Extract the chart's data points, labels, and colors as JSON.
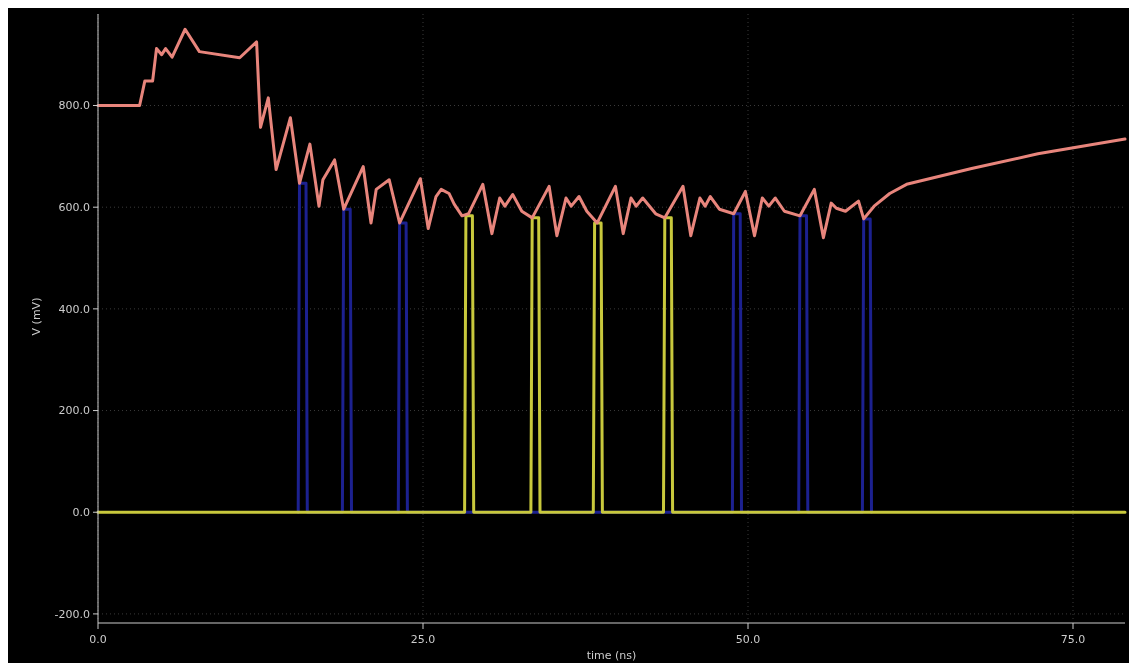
{
  "chart_data": {
    "type": "line",
    "xlabel": "time (ns)",
    "ylabel": "V (mV)",
    "xlim": [
      0,
      79
    ],
    "ylim": [
      -210,
      980
    ],
    "xticks": [
      {
        "value": 0,
        "label": "0.0"
      },
      {
        "value": 25,
        "label": "25.0"
      },
      {
        "value": 50,
        "label": "50.0"
      },
      {
        "value": 75,
        "label": "75.0"
      }
    ],
    "yticks": [
      {
        "value": -200,
        "label": "-200.0"
      },
      {
        "value": 0,
        "label": "0.0"
      },
      {
        "value": 200,
        "label": "200.0"
      },
      {
        "value": 400,
        "label": "400.0"
      },
      {
        "value": 600,
        "label": "600.0"
      },
      {
        "value": 800,
        "label": "800.0"
      }
    ],
    "grid": true,
    "marker": "none",
    "line_style": "solid",
    "series": [
      {
        "color": "#1c2190",
        "x": [
          15.4,
          15.5,
          16.0,
          16.1,
          18.8,
          18.9,
          19.4,
          19.5,
          23.1,
          23.2,
          23.7,
          23.8,
          48.8,
          48.9,
          49.4,
          49.5,
          53.9,
          54.0,
          54.5,
          54.6,
          58.8,
          58.9,
          59.4,
          59.5
        ],
        "values": [
          0,
          647,
          647,
          0,
          0,
          596,
          596,
          0,
          0,
          569,
          569,
          0,
          0,
          587,
          587,
          0,
          0,
          583,
          583,
          0,
          0,
          577,
          577,
          0
        ]
      },
      {
        "color": "#c8c83c",
        "x": [
          0,
          28.2,
          28.3,
          28.8,
          28.9,
          33.3,
          33.4,
          33.9,
          34.0,
          38.1,
          38.2,
          38.7,
          38.8,
          43.5,
          43.6,
          44.1,
          44.2,
          79
        ],
        "values": [
          0,
          0,
          583,
          583,
          0,
          0,
          579,
          579,
          0,
          0,
          569,
          569,
          0,
          0,
          579,
          579,
          0,
          0
        ]
      },
      {
        "color": "#e8857c",
        "x": [
          0,
          3.2,
          3.6,
          4.2,
          4.5,
          4.9,
          5.2,
          5.7,
          6.7,
          7.8,
          10.9,
          12.2,
          12.5,
          13.1,
          13.7,
          14.8,
          15.5,
          16.3,
          17.0,
          17.3,
          18.2,
          18.9,
          20.4,
          21.0,
          21.4,
          22.4,
          23.2,
          24.8,
          25.4,
          26.0,
          26.4,
          27.0,
          27.4,
          28.0,
          28.5,
          29.6,
          30.3,
          30.9,
          31.3,
          31.9,
          32.6,
          33.4,
          34.7,
          35.3,
          36.0,
          36.4,
          37.0,
          37.6,
          38.4,
          39.8,
          40.4,
          41.0,
          41.4,
          41.9,
          42.9,
          43.6,
          45.0,
          45.6,
          46.3,
          46.7,
          47.1,
          47.8,
          48.9,
          49.8,
          50.5,
          51.1,
          51.6,
          52.1,
          52.8,
          54.0,
          55.1,
          55.8,
          56.4,
          56.8,
          57.5,
          58.5,
          58.9,
          59.7,
          60.9,
          62.2,
          67.2,
          72.3,
          79.0
        ],
        "values": [
          800,
          800,
          848,
          848,
          912,
          900,
          912,
          895,
          950,
          906,
          894,
          925,
          757,
          815,
          674,
          776,
          647,
          724,
          602,
          654,
          693,
          596,
          680,
          569,
          635,
          654,
          569,
          656,
          558,
          621,
          635,
          627,
          606,
          583,
          587,
          645,
          548,
          618,
          602,
          625,
          592,
          579,
          641,
          544,
          618,
          602,
          621,
          592,
          569,
          641,
          548,
          618,
          602,
          618,
          587,
          579,
          641,
          544,
          618,
          602,
          621,
          596,
          587,
          631,
          544,
          618,
          602,
          618,
          592,
          583,
          635,
          540,
          608,
          598,
          592,
          612,
          577,
          602,
          627,
          645,
          676,
          705,
          734
        ]
      }
    ]
  }
}
